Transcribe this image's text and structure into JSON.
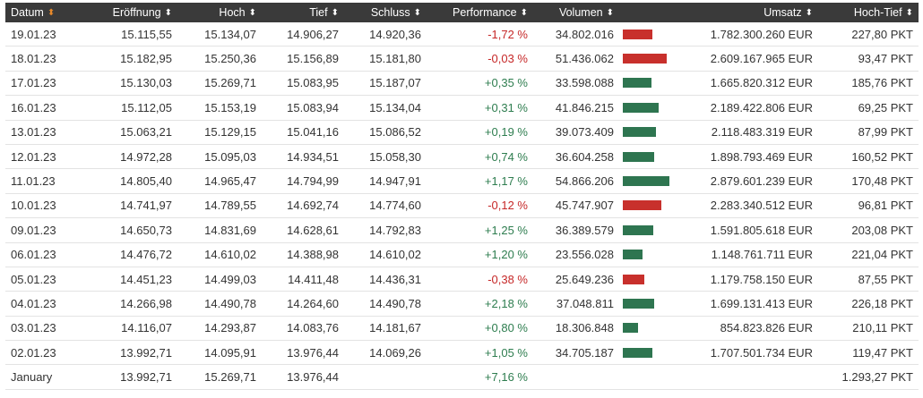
{
  "headers": {
    "datum": "Datum",
    "eroeffnung": "Eröffnung",
    "hoch": "Hoch",
    "tief": "Tief",
    "schluss": "Schluss",
    "performance": "Performance",
    "volumen": "Volumen",
    "umsatz": "Umsatz",
    "hochtief": "Hoch-Tief"
  },
  "colors": {
    "positive": "#2e7d4f",
    "negative": "#c62828",
    "bar_positive": "#2e7550",
    "bar_negative": "#c8302c",
    "header_bg": "#3a3a3a",
    "sort_active": "#e8892a"
  },
  "volume_max": 54866206,
  "rows": [
    {
      "datum": "19.01.23",
      "eroeffnung": "15.115,55",
      "hoch": "15.134,07",
      "tief": "14.906,27",
      "schluss": "14.920,36",
      "performance": "-1,72 %",
      "volumen": "34.802.016",
      "volume": 34802016,
      "trend": "down",
      "umsatz": "1.782.300.260 EUR",
      "hochtief": "227,80 PKT"
    },
    {
      "datum": "18.01.23",
      "eroeffnung": "15.182,95",
      "hoch": "15.250,36",
      "tief": "15.156,89",
      "schluss": "15.181,80",
      "performance": "-0,03 %",
      "volumen": "51.436.062",
      "volume": 51436062,
      "trend": "down",
      "umsatz": "2.609.167.965 EUR",
      "hochtief": "93,47 PKT"
    },
    {
      "datum": "17.01.23",
      "eroeffnung": "15.130,03",
      "hoch": "15.269,71",
      "tief": "15.083,95",
      "schluss": "15.187,07",
      "performance": "+0,35 %",
      "volumen": "33.598.088",
      "volume": 33598088,
      "trend": "up",
      "umsatz": "1.665.820.312 EUR",
      "hochtief": "185,76 PKT"
    },
    {
      "datum": "16.01.23",
      "eroeffnung": "15.112,05",
      "hoch": "15.153,19",
      "tief": "15.083,94",
      "schluss": "15.134,04",
      "performance": "+0,31 %",
      "volumen": "41.846.215",
      "volume": 41846215,
      "trend": "up",
      "umsatz": "2.189.422.806 EUR",
      "hochtief": "69,25 PKT"
    },
    {
      "datum": "13.01.23",
      "eroeffnung": "15.063,21",
      "hoch": "15.129,15",
      "tief": "15.041,16",
      "schluss": "15.086,52",
      "performance": "+0,19 %",
      "volumen": "39.073.409",
      "volume": 39073409,
      "trend": "up",
      "umsatz": "2.118.483.319 EUR",
      "hochtief": "87,99 PKT"
    },
    {
      "datum": "12.01.23",
      "eroeffnung": "14.972,28",
      "hoch": "15.095,03",
      "tief": "14.934,51",
      "schluss": "15.058,30",
      "performance": "+0,74 %",
      "volumen": "36.604.258",
      "volume": 36604258,
      "trend": "up",
      "umsatz": "1.898.793.469 EUR",
      "hochtief": "160,52 PKT"
    },
    {
      "datum": "11.01.23",
      "eroeffnung": "14.805,40",
      "hoch": "14.965,47",
      "tief": "14.794,99",
      "schluss": "14.947,91",
      "performance": "+1,17 %",
      "volumen": "54.866.206",
      "volume": 54866206,
      "trend": "up",
      "umsatz": "2.879.601.239 EUR",
      "hochtief": "170,48 PKT"
    },
    {
      "datum": "10.01.23",
      "eroeffnung": "14.741,97",
      "hoch": "14.789,55",
      "tief": "14.692,74",
      "schluss": "14.774,60",
      "performance": "-0,12 %",
      "volumen": "45.747.907",
      "volume": 45747907,
      "trend": "down",
      "umsatz": "2.283.340.512 EUR",
      "hochtief": "96,81 PKT"
    },
    {
      "datum": "09.01.23",
      "eroeffnung": "14.650,73",
      "hoch": "14.831,69",
      "tief": "14.628,61",
      "schluss": "14.792,83",
      "performance": "+1,25 %",
      "volumen": "36.389.579",
      "volume": 36389579,
      "trend": "up",
      "umsatz": "1.591.805.618 EUR",
      "hochtief": "203,08 PKT"
    },
    {
      "datum": "06.01.23",
      "eroeffnung": "14.476,72",
      "hoch": "14.610,02",
      "tief": "14.388,98",
      "schluss": "14.610,02",
      "performance": "+1,20 %",
      "volumen": "23.556.028",
      "volume": 23556028,
      "trend": "up",
      "umsatz": "1.148.761.711 EUR",
      "hochtief": "221,04 PKT"
    },
    {
      "datum": "05.01.23",
      "eroeffnung": "14.451,23",
      "hoch": "14.499,03",
      "tief": "14.411,48",
      "schluss": "14.436,31",
      "performance": "-0,38 %",
      "volumen": "25.649.236",
      "volume": 25649236,
      "trend": "down",
      "umsatz": "1.179.758.150 EUR",
      "hochtief": "87,55 PKT"
    },
    {
      "datum": "04.01.23",
      "eroeffnung": "14.266,98",
      "hoch": "14.490,78",
      "tief": "14.264,60",
      "schluss": "14.490,78",
      "performance": "+2,18 %",
      "volumen": "37.048.811",
      "volume": 37048811,
      "trend": "up",
      "umsatz": "1.699.131.413 EUR",
      "hochtief": "226,18 PKT"
    },
    {
      "datum": "03.01.23",
      "eroeffnung": "14.116,07",
      "hoch": "14.293,87",
      "tief": "14.083,76",
      "schluss": "14.181,67",
      "performance": "+0,80 %",
      "volumen": "18.306.848",
      "volume": 18306848,
      "trend": "up",
      "umsatz": "854.823.826 EUR",
      "hochtief": "210,11 PKT"
    },
    {
      "datum": "02.01.23",
      "eroeffnung": "13.992,71",
      "hoch": "14.095,91",
      "tief": "13.976,44",
      "schluss": "14.069,26",
      "performance": "+1,05 %",
      "volumen": "34.705.187",
      "volume": 34705187,
      "trend": "up",
      "umsatz": "1.707.501.734 EUR",
      "hochtief": "119,47 PKT"
    }
  ],
  "summary": {
    "datum": "January",
    "eroeffnung": "13.992,71",
    "hoch": "15.269,71",
    "tief": "13.976,44",
    "schluss": "",
    "performance": "+7,16 %",
    "volumen": "",
    "umsatz": "",
    "hochtief": "1.293,27 PKT",
    "trend": "up"
  }
}
